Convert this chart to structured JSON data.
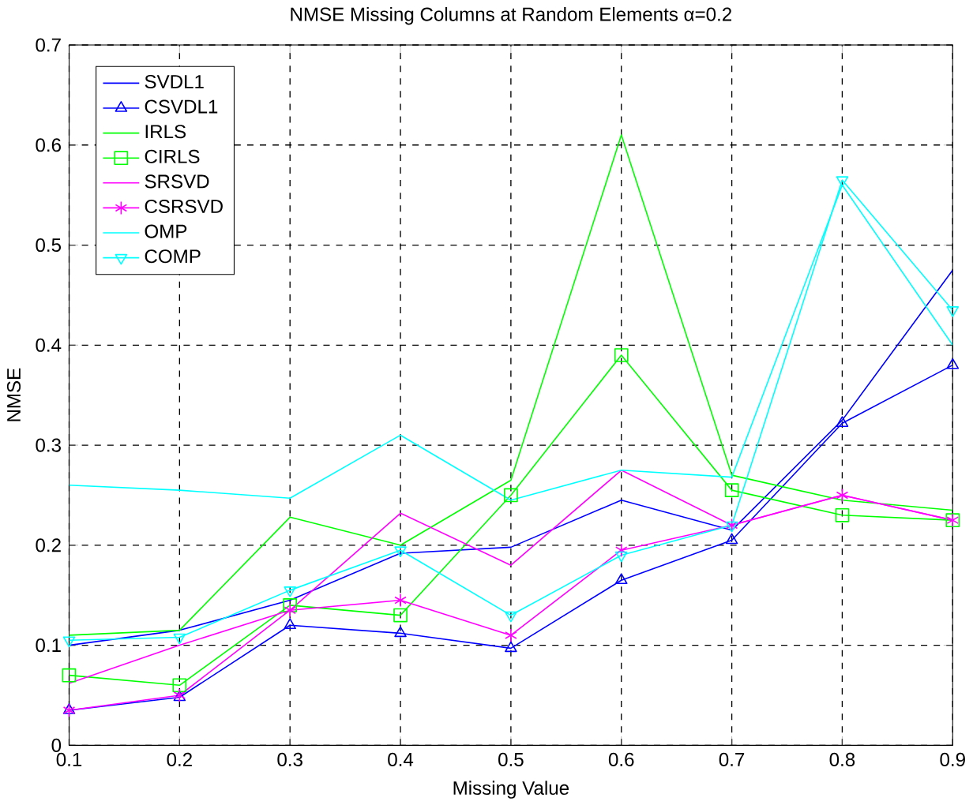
{
  "chart_data": {
    "type": "line",
    "title": "NMSE Missing Columns at Random Elements α=0.2",
    "xlabel": "Missing Value",
    "ylabel": "NMSE",
    "x": [
      0.1,
      0.2,
      0.3,
      0.4,
      0.5,
      0.6,
      0.7,
      0.8,
      0.9
    ],
    "series": [
      {
        "name": "SVDL1",
        "color": "#0000ff",
        "marker": "none",
        "values": [
          0.1,
          0.115,
          0.145,
          0.192,
          0.198,
          0.245,
          0.215,
          0.325,
          0.475
        ]
      },
      {
        "name": "CSVDL1",
        "color": "#0000ff",
        "marker": "triangle",
        "values": [
          0.035,
          0.048,
          0.12,
          0.112,
          0.097,
          0.165,
          0.205,
          0.322,
          0.38
        ]
      },
      {
        "name": "IRLS",
        "color": "#00ff00",
        "marker": "none",
        "values": [
          0.11,
          0.115,
          0.228,
          0.2,
          0.265,
          0.61,
          0.27,
          0.245,
          0.235
        ]
      },
      {
        "name": "CIRLS",
        "color": "#00ff00",
        "marker": "square",
        "values": [
          0.07,
          0.06,
          0.14,
          0.13,
          0.25,
          0.39,
          0.255,
          0.23,
          0.225
        ]
      },
      {
        "name": "SRSVD",
        "color": "#ff00ff",
        "marker": "none",
        "values": [
          0.062,
          0.1,
          0.135,
          0.232,
          0.18,
          0.275,
          0.22,
          0.25,
          0.225
        ]
      },
      {
        "name": "CSRSVD",
        "color": "#ff00ff",
        "marker": "cross",
        "values": [
          0.035,
          0.05,
          0.135,
          0.145,
          0.11,
          0.195,
          0.22,
          0.25,
          0.225
        ]
      },
      {
        "name": "OMP",
        "color": "#00ffff",
        "marker": "none",
        "values": [
          0.26,
          0.255,
          0.247,
          0.31,
          0.245,
          0.275,
          0.268,
          0.56,
          0.4
        ]
      },
      {
        "name": "COMP",
        "color": "#00ffff",
        "marker": "triangle-down",
        "values": [
          0.105,
          0.108,
          0.155,
          0.195,
          0.13,
          0.19,
          0.22,
          0.565,
          0.435
        ]
      }
    ],
    "xlim": [
      0.1,
      0.9
    ],
    "ylim": [
      0,
      0.7
    ],
    "xticks": [
      0.1,
      0.2,
      0.3,
      0.4,
      0.5,
      0.6,
      0.7,
      0.8,
      0.9
    ],
    "yticks": [
      0,
      0.1,
      0.2,
      0.3,
      0.4,
      0.5,
      0.6,
      0.7
    ],
    "grid": true,
    "legend": "top left",
    "line_style": "solid"
  }
}
